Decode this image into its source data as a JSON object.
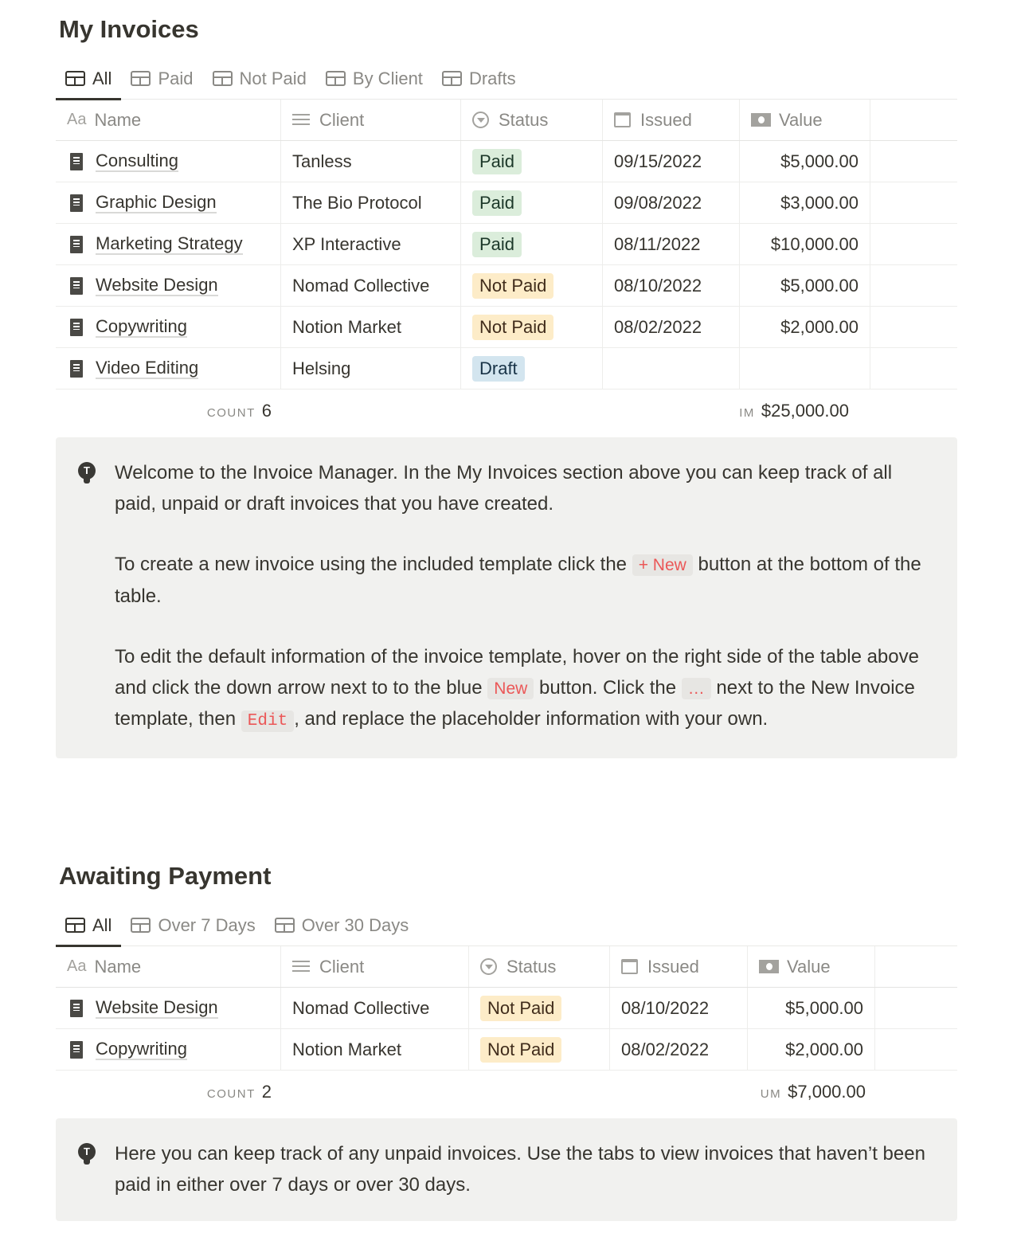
{
  "invoices": {
    "title": "My Invoices",
    "tabs": [
      "All",
      "Paid",
      "Not Paid",
      "By Client",
      "Drafts"
    ],
    "columns": [
      "Name",
      "Client",
      "Status",
      "Issued",
      "Value"
    ],
    "name_icon_text": "Aa",
    "rows": [
      {
        "name": "Consulting",
        "client": "Tanless",
        "status": "Paid",
        "issued": "09/15/2022",
        "value": "$5,000.00"
      },
      {
        "name": "Graphic Design",
        "client": "The Bio Protocol",
        "status": "Paid",
        "issued": "09/08/2022",
        "value": "$3,000.00"
      },
      {
        "name": "Marketing Strategy",
        "client": "XP Interactive",
        "status": "Paid",
        "issued": "08/11/2022",
        "value": "$10,000.00"
      },
      {
        "name": "Website Design",
        "client": "Nomad Collective",
        "status": "Not Paid",
        "issued": "08/10/2022",
        "value": "$5,000.00"
      },
      {
        "name": "Copywriting",
        "client": "Notion Market",
        "status": "Not Paid",
        "issued": "08/02/2022",
        "value": "$2,000.00"
      },
      {
        "name": "Video Editing",
        "client": "Helsing",
        "status": "Draft",
        "issued": "",
        "value": ""
      }
    ],
    "count_label": "COUNT",
    "count": "6",
    "sum_label": "IM",
    "sum": "$25,000.00"
  },
  "callout1": {
    "p1": "Welcome to the Invoice Manager. In the My Invoices section above you can keep track of all paid, unpaid or draft invoices that you have created.",
    "p2a": "To create a new invoice using the included template click the",
    "p2code": "+ New",
    "p2b": "button at the bottom of the table.",
    "p3a": "To edit the default information of the invoice template, hover on the right side of the table above and click the down arrow next to to the blue",
    "p3code1": "New",
    "p3b": "button. Click the",
    "p3code2": "…",
    "p3c": "next to the New Invoice template, then",
    "p3code3": "Edit",
    "p3d": ", and replace the placeholder information with your own."
  },
  "awaiting": {
    "title": "Awaiting Payment",
    "tabs": [
      "All",
      "Over 7 Days",
      "Over 30 Days"
    ],
    "columns": [
      "Name",
      "Client",
      "Status",
      "Issued",
      "Value"
    ],
    "name_icon_text": "Aa",
    "rows": [
      {
        "name": "Website Design",
        "client": "Nomad Collective",
        "status": "Not Paid",
        "issued": "08/10/2022",
        "value": "$5,000.00"
      },
      {
        "name": "Copywriting",
        "client": "Notion Market",
        "status": "Not Paid",
        "issued": "08/02/2022",
        "value": "$2,000.00"
      }
    ],
    "count_label": "COUNT",
    "count": "2",
    "sum_label": "UM",
    "sum": "$7,000.00"
  },
  "callout2": {
    "text": "Here you can keep track of any unpaid invoices. Use the tabs to view invoices that haven’t been paid in either over 7 days or over 30 days."
  },
  "colors": {
    "paid": "#dbeddb",
    "not_paid": "#fdecc8",
    "draft": "#d3e5ef",
    "code": "#eb5757"
  }
}
